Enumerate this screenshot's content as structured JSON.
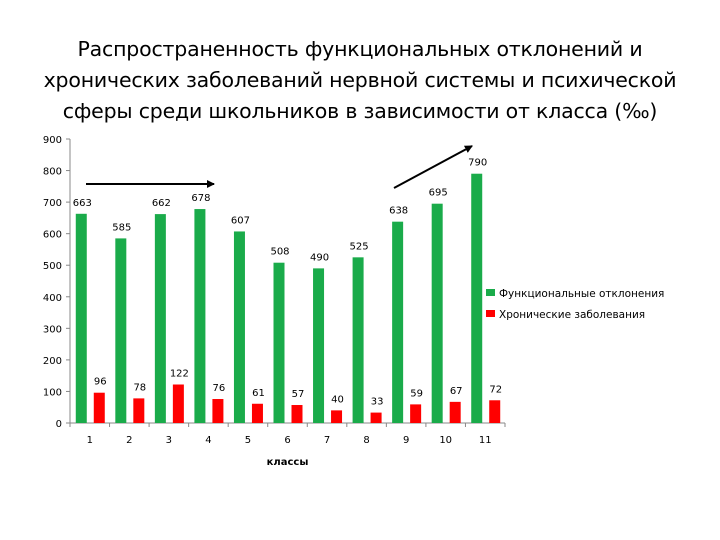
{
  "page": {
    "title": "Распространенность функциональных отклонений и хронических заболеваний нервной системы и психической сферы среди школьников в зависимости от класса (‰)"
  },
  "chart_data": {
    "type": "bar",
    "title": "",
    "xlabel": "классы",
    "ylabel": "",
    "categories": [
      "1",
      "2",
      "3",
      "4",
      "5",
      "6",
      "7",
      "8",
      "9",
      "10",
      "11"
    ],
    "ylim": [
      0,
      900
    ],
    "yticks": [
      0,
      100,
      200,
      300,
      400,
      500,
      600,
      700,
      800,
      900
    ],
    "grid": false,
    "legend_position": "right",
    "series": [
      {
        "name": "Функциональные отклонения",
        "color": "#1aab4a",
        "values": [
          663,
          585,
          662,
          678,
          607,
          508,
          490,
          525,
          638,
          695,
          790
        ]
      },
      {
        "name": "Хронические заболевания",
        "color": "#ff0000",
        "values": [
          96,
          78,
          122,
          76,
          61,
          57,
          40,
          33,
          59,
          67,
          72
        ]
      }
    ],
    "annotations": [
      {
        "type": "arrow",
        "description": "horizontal arrow over classes 1-4"
      },
      {
        "type": "arrow",
        "description": "rising arrow over classes 9-11"
      }
    ]
  }
}
